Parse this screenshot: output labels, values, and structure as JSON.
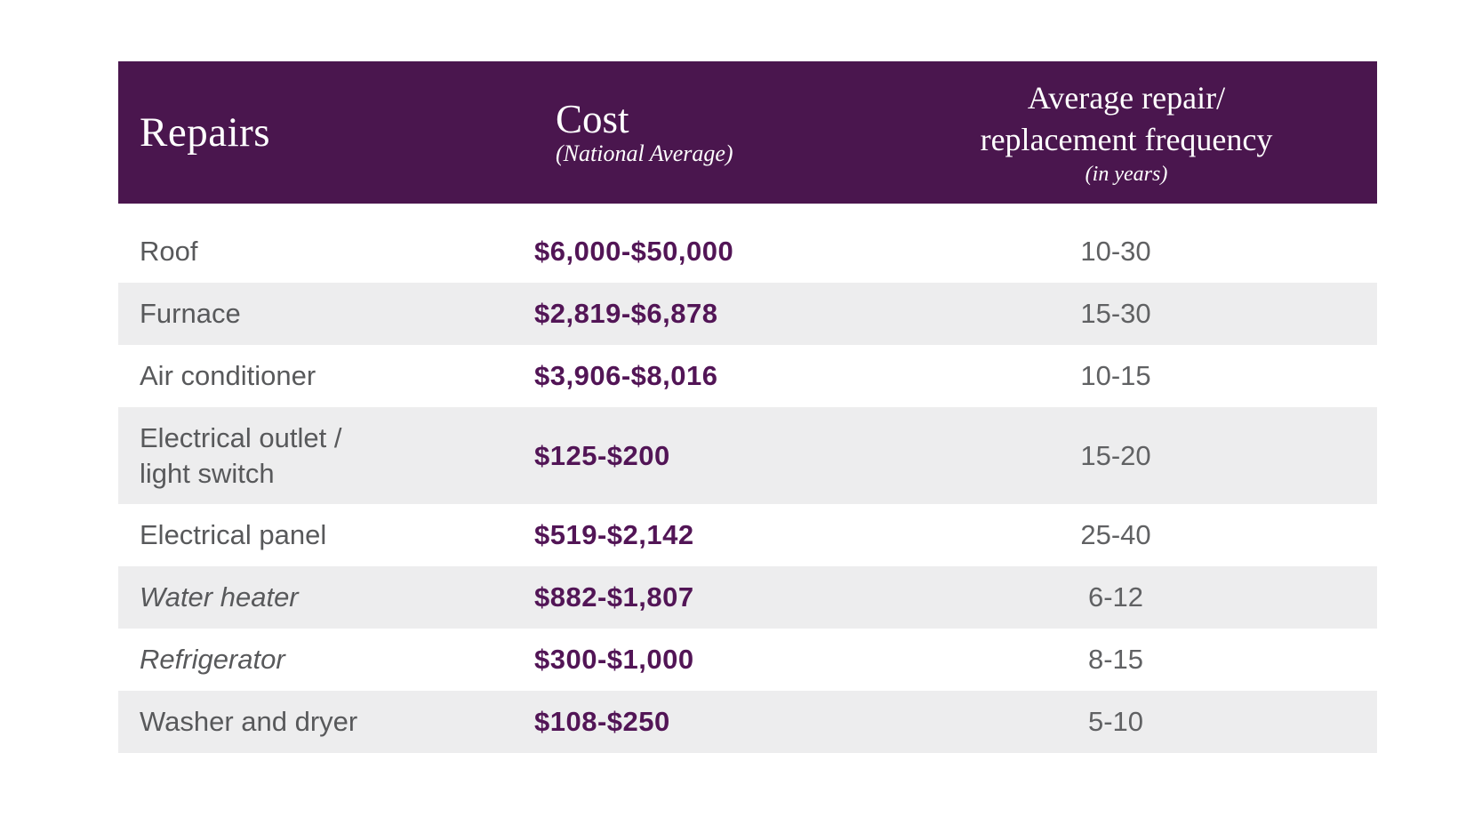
{
  "chart_data": {
    "type": "table",
    "title": "",
    "columns": [
      {
        "label": "Repairs",
        "sublabel": ""
      },
      {
        "label": "Cost",
        "sublabel": "(National Average)"
      },
      {
        "label": "Average repair/\nreplacement frequency",
        "sublabel": "(in years)"
      }
    ],
    "rows": [
      {
        "repair": "Roof",
        "cost": "$6,000-$50,000",
        "frequency": "10-30",
        "italic": false
      },
      {
        "repair": "Furnace",
        "cost": "$2,819-$6,878",
        "frequency": "15-30",
        "italic": false
      },
      {
        "repair": "Air conditioner",
        "cost": "$3,906-$8,016",
        "frequency": "10-15",
        "italic": false
      },
      {
        "repair": "Electrical outlet /\nlight switch",
        "cost": "$125-$200",
        "frequency": "15-20",
        "italic": false
      },
      {
        "repair": "Electrical panel",
        "cost": "$519-$2,142",
        "frequency": "25-40",
        "italic": false
      },
      {
        "repair": "Water heater",
        "cost": "$882-$1,807",
        "frequency": "6-12",
        "italic": true
      },
      {
        "repair": "Refrigerator",
        "cost": "$300-$1,000",
        "frequency": "8-15",
        "italic": true
      },
      {
        "repair": "Washer and dryer",
        "cost": "$108-$250",
        "frequency": "5-10",
        "italic": false
      }
    ]
  },
  "header": {
    "repairs_label": "Repairs",
    "cost_label": "Cost",
    "cost_sublabel": "(National Average)",
    "frequency_label": "Average repair/\nreplacement frequency",
    "frequency_sublabel": "(in years)"
  },
  "colors": {
    "header_bg": "#4A164E",
    "header_text": "#FFFFFF",
    "cost_text": "#521556",
    "label_text": "#58595B",
    "frequency_text": "#606163",
    "row_alt_bg": "#EDEDEE",
    "row_bg": "#FFFFFF"
  }
}
